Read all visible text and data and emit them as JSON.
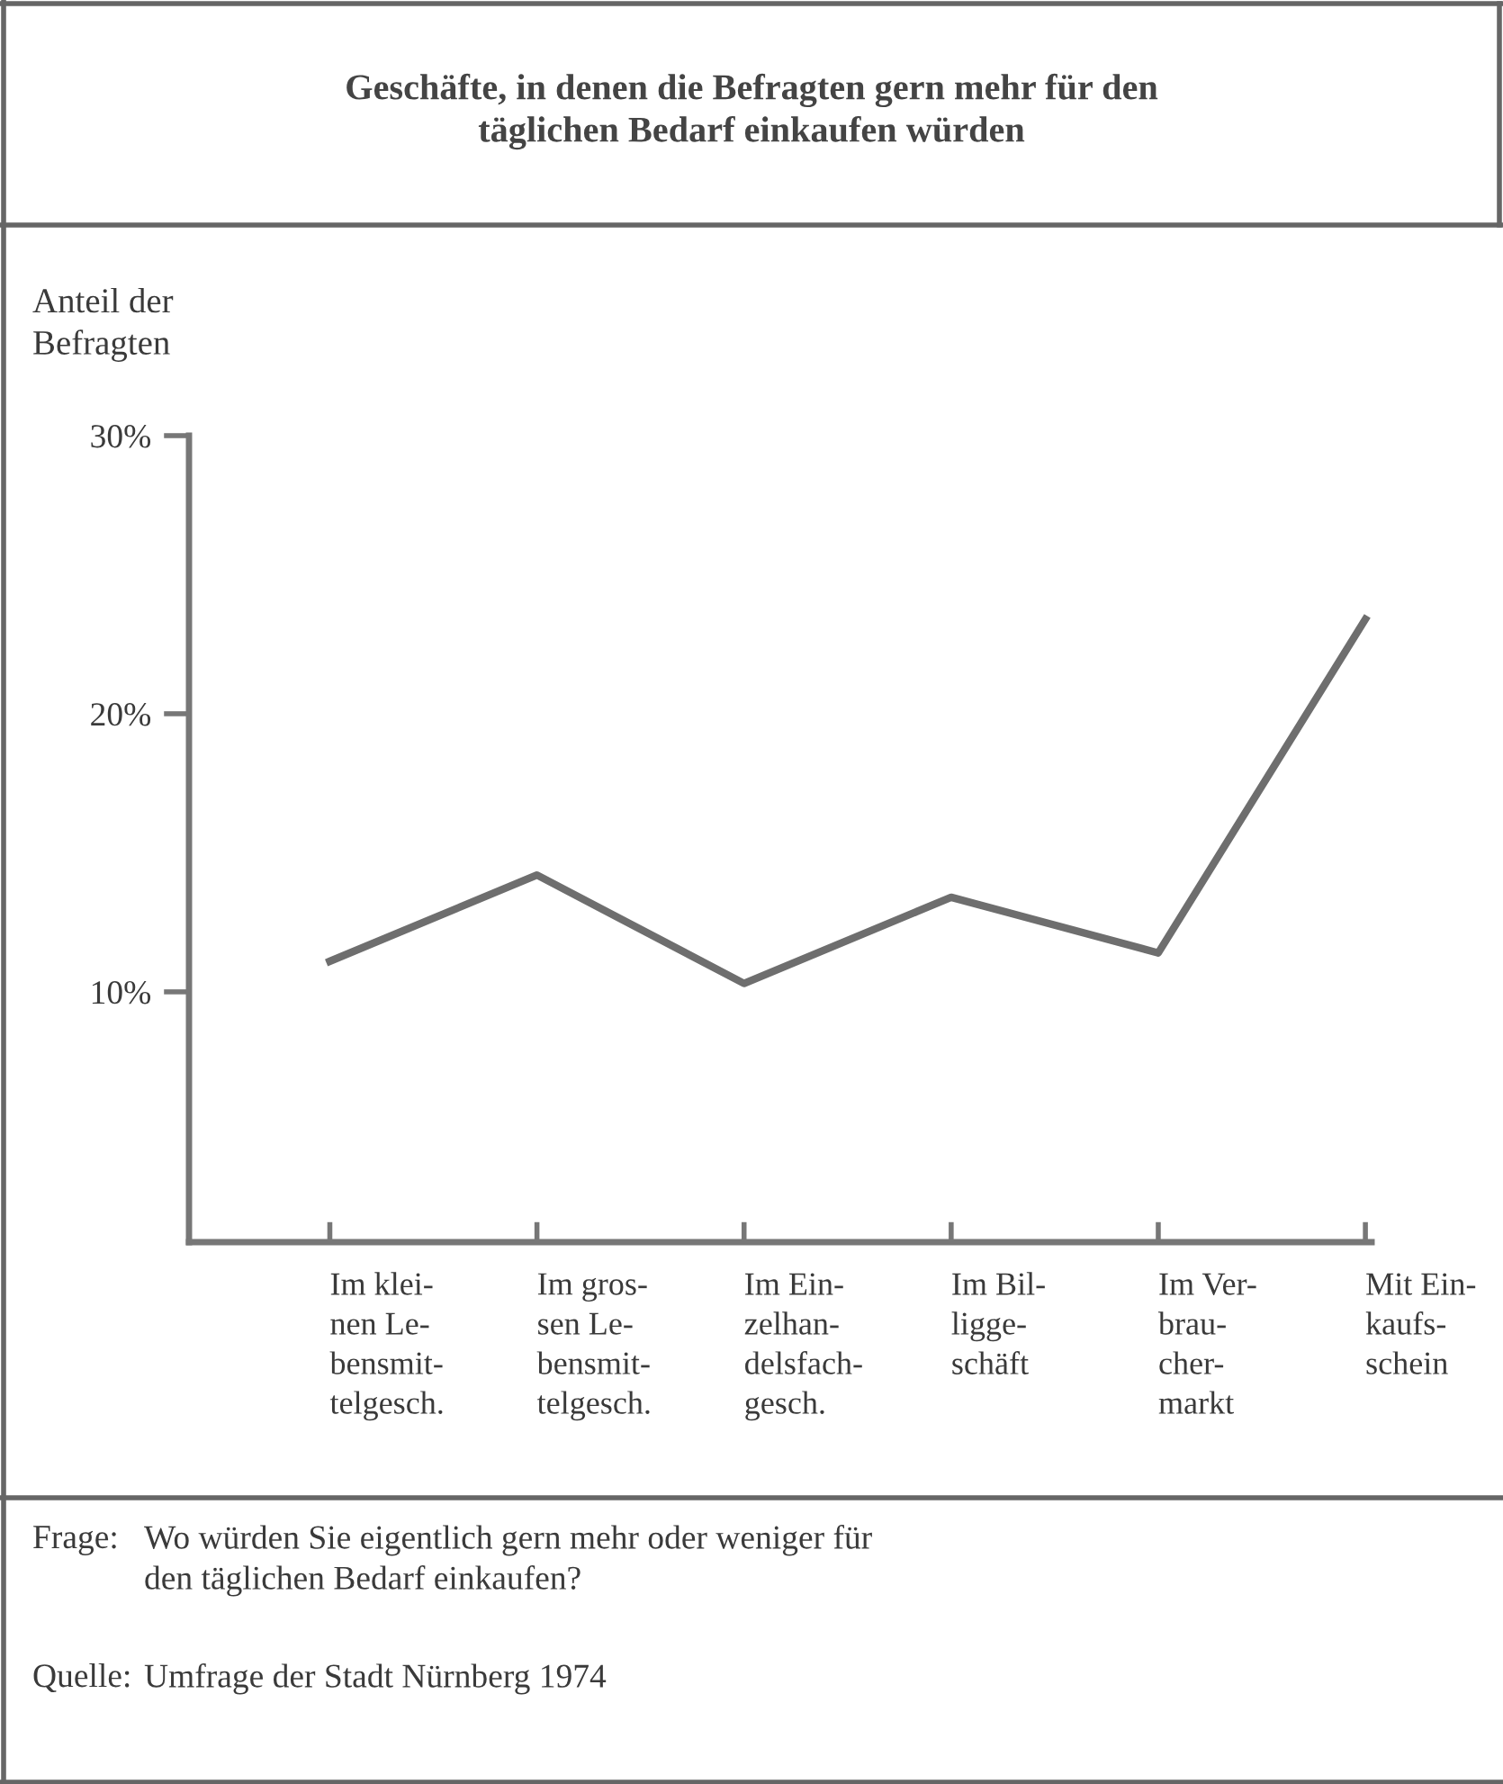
{
  "chart_data": {
    "type": "line",
    "title": "Geschäfte, in denen die Befragten gern mehr für den\ntäglichen Bedarf einkaufen würden",
    "ylabel": "Anteil der\nBefragten",
    "categories": [
      "Im klei-\nnen Le-\nbensmit-\ntelgesch.",
      "Im gros-\nsen Le-\nbensmit-\ntelgesch.",
      "Im Ein-\nzelhan-\ndelsfach-\ngesch.",
      "Im Bil-\nligge-\nschäft",
      "Im Ver-\nbrau-\ncher-\nmarkt",
      "Mit Ein-\nkaufs-\nschein"
    ],
    "series": [
      {
        "color": "#6e6e6e",
        "values": [
          11.1,
          14.2,
          10.3,
          13.4,
          11.4,
          23.4
        ]
      }
    ],
    "ylim": [
      1,
      30
    ],
    "yticks": [
      {
        "value": 10,
        "label": "10%"
      },
      {
        "value": 20,
        "label": "20%"
      },
      {
        "value": 30,
        "label": "30%"
      }
    ],
    "grid": false,
    "legend": false,
    "marker": "none",
    "line_style": "solid",
    "annotations": [
      "Frage: Wo würden Sie eigentlich gern mehr oder weniger für\nden täglichen Bedarf einkaufen?",
      "Quelle: Umfrage der Stadt Nürnberg 1974"
    ]
  }
}
